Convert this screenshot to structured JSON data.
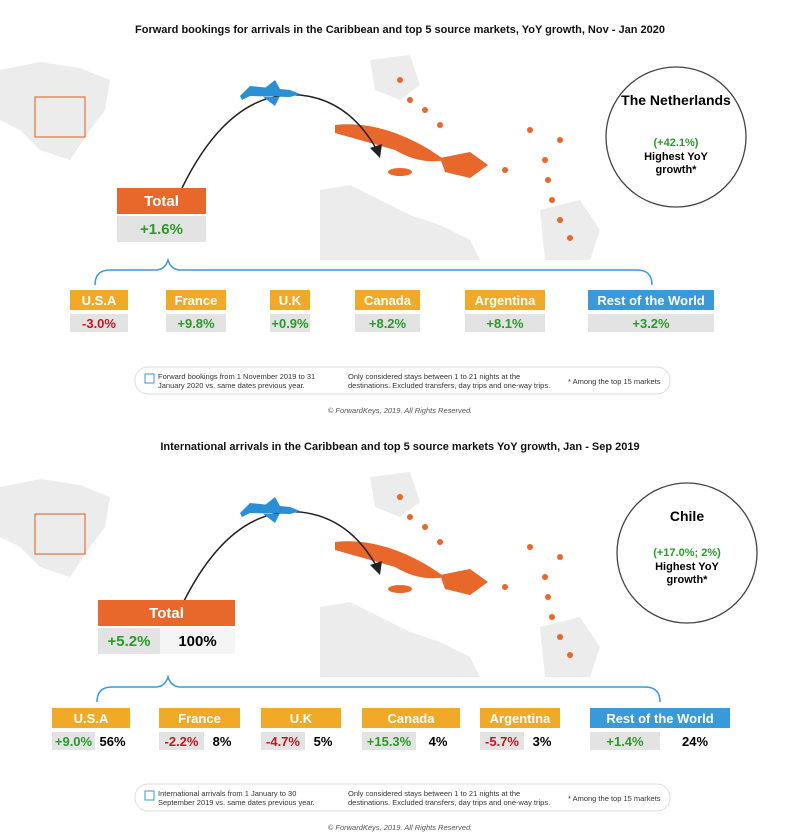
{
  "panels": [
    {
      "title": "Forward bookings for arrivals in the Caribbean and top 5 source markets, YoY growth, Nov - Jan 2020",
      "total": {
        "label": "Total",
        "growth": "+1.6%"
      },
      "highlight": {
        "country": "The Netherlands",
        "growth": "(+42.1%)",
        "caption": "Highest YoY growth*"
      },
      "markets": [
        {
          "name": "U.S.A",
          "growth": "-3.0%"
        },
        {
          "name": "France",
          "growth": "+9.8%"
        },
        {
          "name": "U.K",
          "growth": "+0.9%"
        },
        {
          "name": "Canada",
          "growth": "+8.2%"
        },
        {
          "name": "Argentina",
          "growth": "+8.1%"
        },
        {
          "name": "Rest of the World",
          "growth": "+3.2%"
        }
      ],
      "notes": [
        "Forward bookings from 1 November 2019 to 31 January 2020 vs. same dates previous year.",
        "Only considered stays between 1 to 21 nights at the destinations. Excluded transfers, day trips and one-way trips.",
        "* Among the top 15 markets"
      ],
      "copyright": "© ForwardKeys, 2019. All Rights Reserved."
    },
    {
      "title": "International arrivals in the Caribbean and top 5 source markets YoY growth, Jan - Sep 2019",
      "total": {
        "label": "Total",
        "growth": "+5.2%",
        "share": "100%"
      },
      "highlight": {
        "country": "Chile",
        "growth": "(+17.0%; 2%)",
        "caption": "Highest YoY growth*"
      },
      "markets": [
        {
          "name": "U.S.A",
          "growth": "+9.0%",
          "share": "56%"
        },
        {
          "name": "France",
          "growth": "-2.2%",
          "share": "8%"
        },
        {
          "name": "U.K",
          "growth": "-4.7%",
          "share": "5%"
        },
        {
          "name": "Canada",
          "growth": "+15.3%",
          "share": "4%"
        },
        {
          "name": "Argentina",
          "growth": "-5.7%",
          "share": "3%"
        },
        {
          "name": "Rest of the World",
          "growth": "+1.4%",
          "share": "24%"
        }
      ],
      "notes": [
        "International arrivals from 1 January to 30 September 2019 vs. same dates previous year.",
        "Only considered stays between 1 to 21 nights at the destinations. Excluded transfers, day trips and one-way trips.",
        "* Among the top 15 markets"
      ],
      "copyright": "© ForwardKeys, 2019. All Rights Reserved."
    }
  ]
}
